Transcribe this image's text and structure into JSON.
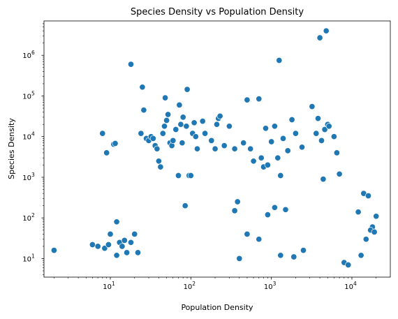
{
  "chart_data": {
    "type": "scatter",
    "title": "Species Density vs Population Density",
    "xlabel": "Population Density",
    "ylabel": "Species Density",
    "x_scale": "log",
    "y_scale": "log",
    "xlim": [
      1.5,
      30000
    ],
    "ylim": [
      3.5,
      7000000
    ],
    "grid": false,
    "legend": "none",
    "color": "#1f77b4",
    "x_ticks": [
      {
        "base": "10",
        "exp": "1",
        "value": 10
      },
      {
        "base": "10",
        "exp": "2",
        "value": 100
      },
      {
        "base": "10",
        "exp": "3",
        "value": 1000
      },
      {
        "base": "10",
        "exp": "4",
        "value": 10000
      }
    ],
    "y_ticks": [
      {
        "base": "10",
        "exp": "1",
        "value": 10
      },
      {
        "base": "10",
        "exp": "2",
        "value": 100
      },
      {
        "base": "10",
        "exp": "3",
        "value": 1000
      },
      {
        "base": "10",
        "exp": "4",
        "value": 10000
      },
      {
        "base": "10",
        "exp": "5",
        "value": 100000
      },
      {
        "base": "10",
        "exp": "6",
        "value": 1000000
      }
    ],
    "points": [
      [
        2,
        16
      ],
      [
        6,
        22
      ],
      [
        7,
        20
      ],
      [
        8,
        12000
      ],
      [
        8.5,
        18
      ],
      [
        9,
        4000
      ],
      [
        9.5,
        22
      ],
      [
        10,
        40
      ],
      [
        11,
        6500
      ],
      [
        11.5,
        6800
      ],
      [
        12,
        80
      ],
      [
        12,
        12
      ],
      [
        13,
        25
      ],
      [
        14,
        20
      ],
      [
        15,
        28
      ],
      [
        16,
        14
      ],
      [
        18,
        600000
      ],
      [
        18,
        25
      ],
      [
        20,
        40
      ],
      [
        22,
        14
      ],
      [
        24,
        12000
      ],
      [
        25,
        165000
      ],
      [
        26,
        45000
      ],
      [
        28,
        9000
      ],
      [
        30,
        8000
      ],
      [
        32,
        10000
      ],
      [
        34,
        9000
      ],
      [
        36,
        6000
      ],
      [
        38,
        5000
      ],
      [
        40,
        2500
      ],
      [
        42,
        1800
      ],
      [
        45,
        12000
      ],
      [
        47,
        18000
      ],
      [
        48,
        90000
      ],
      [
        50,
        25000
      ],
      [
        52,
        35000
      ],
      [
        55,
        7000
      ],
      [
        58,
        6000
      ],
      [
        60,
        8000
      ],
      [
        65,
        15000
      ],
      [
        70,
        1100
      ],
      [
        72,
        60000
      ],
      [
        75,
        20000
      ],
      [
        78,
        7000
      ],
      [
        80,
        30000
      ],
      [
        85,
        200
      ],
      [
        88,
        18000
      ],
      [
        90,
        145000
      ],
      [
        95,
        1100
      ],
      [
        100,
        1100
      ],
      [
        105,
        12000
      ],
      [
        110,
        22000
      ],
      [
        115,
        10000
      ],
      [
        120,
        5000
      ],
      [
        140,
        24000
      ],
      [
        150,
        12000
      ],
      [
        180,
        8000
      ],
      [
        200,
        5000
      ],
      [
        210,
        20000
      ],
      [
        220,
        28000
      ],
      [
        230,
        32000
      ],
      [
        260,
        6000
      ],
      [
        300,
        18000
      ],
      [
        350,
        5000
      ],
      [
        450,
        7000
      ],
      [
        500,
        80000
      ],
      [
        550,
        5000
      ],
      [
        600,
        2500
      ],
      [
        700,
        85000
      ],
      [
        750,
        3000
      ],
      [
        800,
        1800
      ],
      [
        850,
        16000
      ],
      [
        900,
        2000
      ],
      [
        1000,
        7500
      ],
      [
        1100,
        18000
      ],
      [
        1200,
        3000
      ],
      [
        1250,
        750000
      ],
      [
        1300,
        1100
      ],
      [
        1400,
        9000
      ],
      [
        1600,
        4500
      ],
      [
        1800,
        26000
      ],
      [
        2000,
        12000
      ],
      [
        2400,
        5500
      ],
      [
        3200,
        55000
      ],
      [
        3600,
        12000
      ],
      [
        3800,
        28000
      ],
      [
        4000,
        2700000
      ],
      [
        4200,
        8000
      ],
      [
        4400,
        900
      ],
      [
        4600,
        15000
      ],
      [
        4800,
        4000000
      ],
      [
        5000,
        20000
      ],
      [
        5200,
        18000
      ],
      [
        6000,
        10000
      ],
      [
        6500,
        4000
      ],
      [
        7000,
        1200
      ],
      [
        380,
        250
      ],
      [
        400,
        10
      ],
      [
        350,
        150
      ],
      [
        500,
        40
      ],
      [
        700,
        30
      ],
      [
        900,
        120
      ],
      [
        1500,
        160
      ],
      [
        1100,
        180
      ],
      [
        1300,
        12
      ],
      [
        1900,
        11
      ],
      [
        2500,
        16
      ],
      [
        8000,
        8
      ],
      [
        9000,
        7
      ],
      [
        12000,
        140
      ],
      [
        14000,
        400
      ],
      [
        16000,
        350
      ],
      [
        18000,
        60
      ],
      [
        20000,
        110
      ],
      [
        15000,
        30
      ],
      [
        13000,
        12
      ],
      [
        17000,
        50
      ],
      [
        19000,
        45
      ]
    ]
  }
}
